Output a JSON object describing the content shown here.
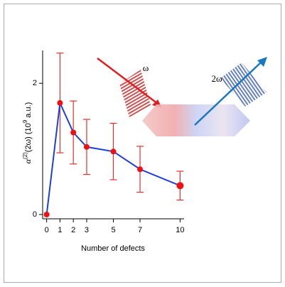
{
  "chart_data": {
    "type": "line",
    "x_label": "Number of defects",
    "y_label": [
      {
        "text": "α"
      },
      {
        "text": "(2)",
        "sup": true
      },
      {
        "text": "(2ω)  (10"
      },
      {
        "text": "9",
        "sup": true
      },
      {
        "text": " a.u.)"
      }
    ],
    "annotations": [
      {
        "text": "ω",
        "color": "#d62020"
      },
      {
        "text": "2ω",
        "color": "#1a78c2"
      }
    ],
    "x": [
      0,
      1,
      2,
      3,
      5,
      7,
      10
    ],
    "series": [
      {
        "line_color": "#1f3ee0",
        "marker_color": "#ee1111",
        "error_color": "#e03030",
        "values": [
          0,
          1.7,
          1.25,
          1.03,
          0.96,
          0.69,
          0.44
        ],
        "errors": [
          null,
          0.76,
          0.48,
          0.42,
          0.43,
          0.35,
          0.22
        ]
      }
    ],
    "xlim": [
      -0.3,
      10.3
    ],
    "xticks": [
      0,
      1,
      2,
      3,
      5,
      7,
      10
    ],
    "ylim": [
      0,
      2.5
    ],
    "yticks": [
      0,
      2
    ],
    "grid": false
  }
}
